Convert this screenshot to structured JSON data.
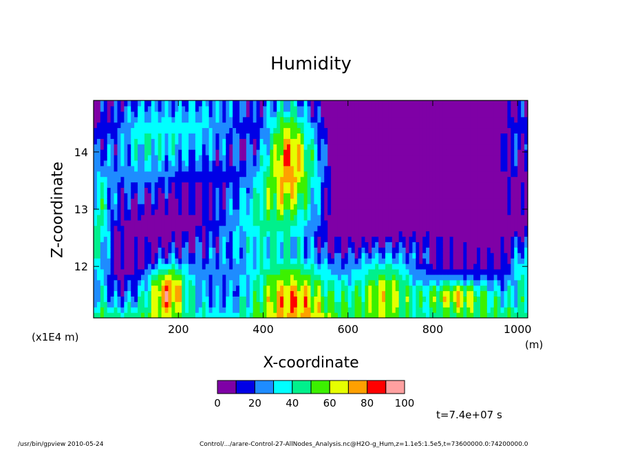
{
  "chart_data": {
    "type": "heatmap",
    "title": "Humidity",
    "xlabel": "X-coordinate",
    "ylabel": "Z-coordinate",
    "x_unit": "(m)",
    "y_unit": "(x1E4 m)",
    "xlim": [
      0,
      1024
    ],
    "ylim": [
      11.1,
      14.9
    ],
    "x_ticks": [
      200,
      400,
      600,
      800,
      1000
    ],
    "y_ticks": [
      12,
      13,
      14
    ],
    "colorbar": {
      "levels": [
        0,
        10,
        20,
        30,
        40,
        50,
        60,
        70,
        80,
        90,
        100
      ],
      "tick_labels": [
        "0",
        "20",
        "40",
        "60",
        "80",
        "100"
      ],
      "colors": [
        "#7f00a6",
        "#0000e6",
        "#1e8cff",
        "#00ffff",
        "#00f08c",
        "#3cf000",
        "#e6ff00",
        "#ffa000",
        "#ff0000",
        "#ffa0a0",
        "#ffffff"
      ]
    },
    "grid": false
  },
  "annotations": {
    "time": "t=7.4e+07 s",
    "footer_left": "/usr/bin/gpview  2010-05-24",
    "footer_right": "Control/.../arare-Control-27-AllNodes_Analysis.nc@H2O-g_Hum,z=1.1e5:1.5e5,t=73600000.0:74200000.0"
  }
}
